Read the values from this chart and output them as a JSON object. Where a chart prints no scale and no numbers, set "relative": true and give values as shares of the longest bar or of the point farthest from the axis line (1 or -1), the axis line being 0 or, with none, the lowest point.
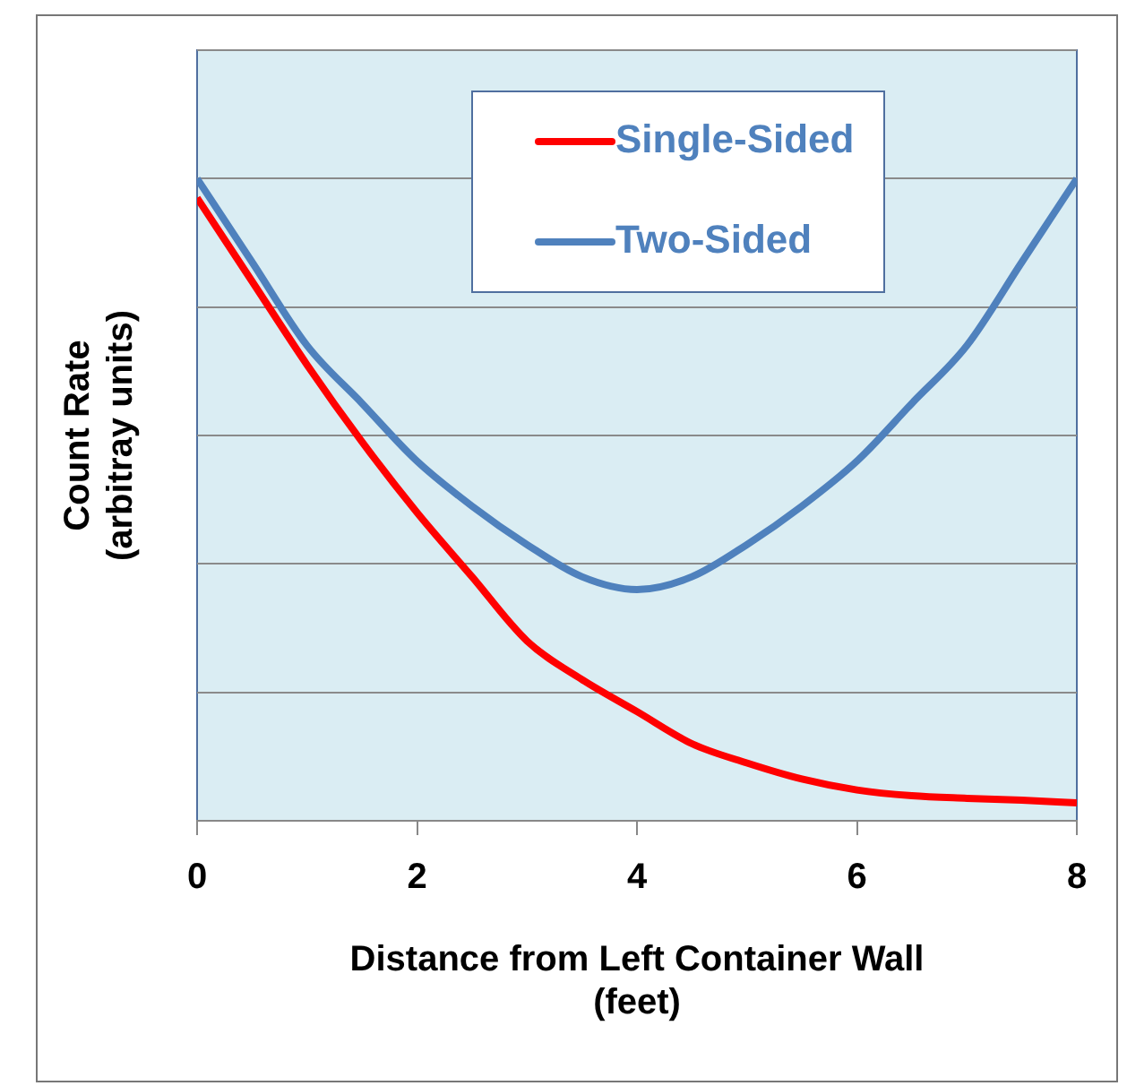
{
  "chart_data": {
    "type": "line",
    "xlabel": "Distance from Left Container Wall\n(feet)",
    "ylabel": "Count Rate\n(arbitray units)",
    "relative": true,
    "x": [
      0,
      0.5,
      1,
      1.5,
      2,
      2.5,
      3,
      3.5,
      4,
      4.5,
      5,
      5.5,
      6,
      6.5,
      7,
      7.5,
      8
    ],
    "xlim": [
      0,
      8
    ],
    "xticks": [
      0,
      2,
      4,
      6,
      8
    ],
    "grid": "y",
    "legend": "top",
    "marker": "none",
    "line_style": "solid",
    "series": [
      {
        "name": "Single-Sided",
        "color": "#ff0000",
        "values": [
          0.97,
          0.84,
          0.71,
          0.59,
          0.48,
          0.38,
          0.28,
          0.22,
          0.17,
          0.12,
          0.09,
          0.065,
          0.048,
          0.039,
          0.035,
          0.032,
          0.028
        ]
      },
      {
        "name": "Two-Sided",
        "color": "#4f81bd",
        "values": [
          1.0,
          0.87,
          0.74,
          0.65,
          0.56,
          0.49,
          0.43,
          0.38,
          0.36,
          0.38,
          0.43,
          0.49,
          0.56,
          0.65,
          0.74,
          0.87,
          1.0
        ]
      }
    ]
  }
}
